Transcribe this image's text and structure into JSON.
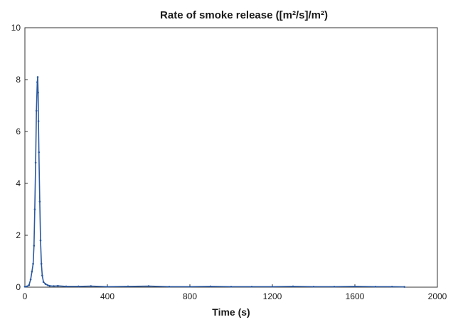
{
  "chart_data": {
    "type": "line",
    "title": "Rate of smoke release ([m²/s]/m²)",
    "xlabel": "Time (s)",
    "ylabel": "",
    "xlim": [
      0,
      2000
    ],
    "ylim": [
      0,
      10
    ],
    "x_ticks": [
      "0",
      "400",
      "800",
      "1200",
      "1600",
      "2000"
    ],
    "y_ticks": [
      "0",
      "2",
      "4",
      "6",
      "8",
      "10"
    ],
    "grid": false,
    "legend": "none",
    "series": [
      {
        "color": "#2c5aa0",
        "x": [
          0,
          10,
          20,
          28,
          34,
          40,
          44,
          48,
          52,
          56,
          60,
          62,
          64,
          66,
          68,
          72,
          76,
          80,
          84,
          90,
          100,
          110,
          120,
          140,
          160,
          200,
          260,
          320,
          400,
          500,
          600,
          700,
          800,
          900,
          1000,
          1100,
          1200,
          1300,
          1400,
          1500,
          1600,
          1700,
          1780,
          1840
        ],
        "y": [
          0.02,
          0.03,
          0.08,
          0.3,
          0.6,
          0.9,
          1.6,
          3.0,
          4.8,
          6.8,
          7.9,
          8.1,
          7.5,
          6.4,
          5.2,
          3.3,
          1.8,
          0.9,
          0.45,
          0.2,
          0.12,
          0.08,
          0.05,
          0.04,
          0.05,
          0.03,
          0.03,
          0.04,
          0.02,
          0.03,
          0.04,
          0.02,
          0.02,
          0.03,
          0.02,
          0.02,
          0.02,
          0.03,
          0.02,
          0.02,
          0.03,
          0.02,
          0.02,
          0.01
        ]
      }
    ]
  }
}
